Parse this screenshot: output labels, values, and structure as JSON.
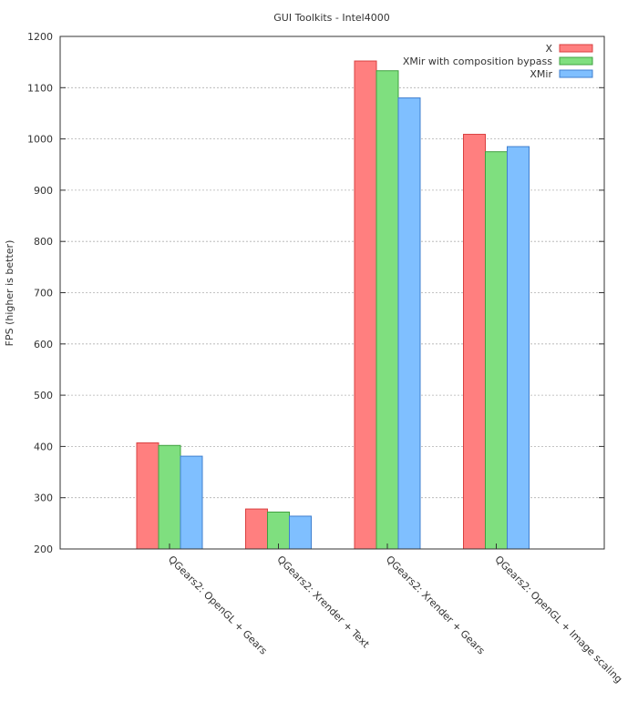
{
  "chart_data": {
    "type": "bar",
    "title": "GUI Toolkits - Intel4000",
    "xlabel": "",
    "ylabel": "FPS (higher is better)",
    "ylim": [
      200,
      1200
    ],
    "yticks": [
      200,
      300,
      400,
      500,
      600,
      700,
      800,
      900,
      1000,
      1100,
      1200
    ],
    "grid": true,
    "legend_position": "top-right",
    "categories": [
      "QGears2: OpenGL + Gears",
      "QGears2: Xrender + Text",
      "QGears2: Xrender + Gears",
      "QGears2: OpenGL + Image scaling"
    ],
    "series": [
      {
        "name": "X",
        "color": "#ff7f7f",
        "stroke": "#d94040",
        "values": [
          407,
          278,
          1152,
          1009
        ]
      },
      {
        "name": "XMir with composition bypass",
        "color": "#7fdf7f",
        "stroke": "#3fa03f",
        "values": [
          402,
          272,
          1133,
          975
        ]
      },
      {
        "name": "XMir",
        "color": "#7fbfff",
        "stroke": "#3f7fcf",
        "values": [
          381,
          264,
          1080,
          985
        ]
      }
    ]
  }
}
